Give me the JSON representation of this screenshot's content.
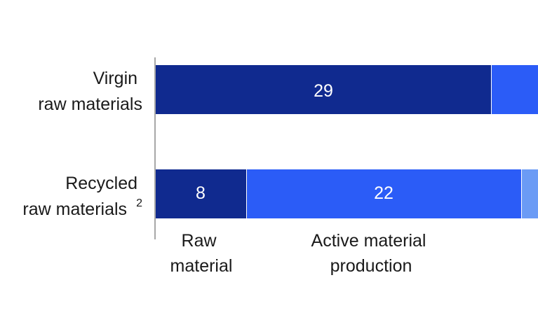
{
  "chart_data": {
    "type": "bar",
    "orientation": "horizontal",
    "stacked": true,
    "categories": [
      {
        "lines": [
          "Virgin",
          "raw materials"
        ],
        "superscript": ""
      },
      {
        "lines": [
          "Recycled",
          "raw materials"
        ],
        "superscript": "2"
      }
    ],
    "series": [
      {
        "name": "Raw material",
        "label_lines": [
          "Raw",
          "material"
        ],
        "color": "#102a8f",
        "values": [
          29,
          8
        ]
      },
      {
        "name": "Active material production",
        "label_lines": [
          "Active material",
          "production"
        ],
        "color": "#2b5cf7",
        "values": [
          null,
          22
        ]
      },
      {
        "color": "#6b9bf5",
        "values": [
          null,
          null
        ]
      }
    ],
    "value_labels": [
      "29",
      "8",
      "22"
    ],
    "grid": false,
    "legend": "none"
  }
}
